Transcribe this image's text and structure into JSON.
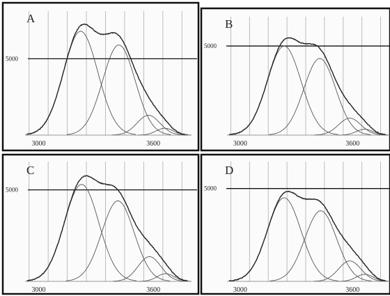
{
  "chart_data": [
    {
      "type": "line",
      "panel_label": "A",
      "reference_line_label": "5000",
      "reference_value": 5000,
      "x_ticks": [
        "3000",
        "3600"
      ],
      "x_tick_values": [
        3000,
        3600
      ],
      "xlim": [
        2900,
        3800
      ],
      "ylim": [
        0,
        8300
      ],
      "components": [
        {
          "center": 3220,
          "height": 6800,
          "width": 90
        },
        {
          "center": 3420,
          "height": 5900,
          "width": 85
        },
        {
          "center": 3575,
          "height": 1300,
          "width": 60
        },
        {
          "center": 3660,
          "height": 450,
          "width": 45
        }
      ]
    },
    {
      "type": "line",
      "panel_label": "B",
      "reference_line_label": "5000",
      "reference_value": 5000,
      "x_ticks": [
        "3000",
        "3600"
      ],
      "x_tick_values": [
        3000,
        3600
      ],
      "xlim": [
        2900,
        3800
      ],
      "ylim": [
        0,
        6800
      ],
      "components": [
        {
          "center": 3235,
          "height": 5000,
          "width": 90
        },
        {
          "center": 3425,
          "height": 4300,
          "width": 85
        },
        {
          "center": 3585,
          "height": 950,
          "width": 60
        },
        {
          "center": 3665,
          "height": 330,
          "width": 45
        }
      ]
    },
    {
      "type": "line",
      "panel_label": "C",
      "reference_line_label": "5000",
      "reference_value": 5000,
      "x_ticks": [
        "3000",
        "3600"
      ],
      "x_tick_values": [
        3000,
        3600
      ],
      "xlim": [
        2900,
        3800
      ],
      "ylim": [
        0,
        6700
      ],
      "components": [
        {
          "center": 3225,
          "height": 5300,
          "width": 90
        },
        {
          "center": 3415,
          "height": 4400,
          "width": 85
        },
        {
          "center": 3580,
          "height": 1350,
          "width": 60
        },
        {
          "center": 3665,
          "height": 420,
          "width": 45
        }
      ]
    },
    {
      "type": "line",
      "panel_label": "D",
      "reference_line_label": "5000",
      "reference_value": 5000,
      "x_ticks": [
        "3000",
        "3600"
      ],
      "x_tick_values": [
        3000,
        3600
      ],
      "xlim": [
        2900,
        3800
      ],
      "ylim": [
        0,
        6600
      ],
      "components": [
        {
          "center": 3235,
          "height": 4500,
          "width": 90
        },
        {
          "center": 3430,
          "height": 3800,
          "width": 85
        },
        {
          "center": 3585,
          "height": 1100,
          "width": 60
        },
        {
          "center": 3665,
          "height": 380,
          "width": 45
        }
      ]
    }
  ]
}
